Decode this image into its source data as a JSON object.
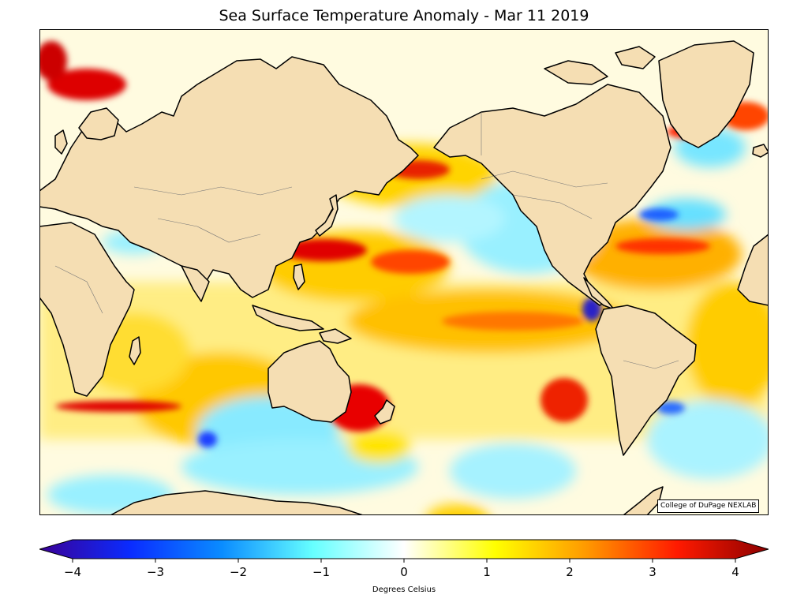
{
  "title": "Sea Surface Temperature Anomaly - Mar 11 2019",
  "credit": "College of DuPage NEXLAB",
  "colorbar": {
    "label": "Degrees Celsius",
    "min": -4,
    "max": 4,
    "ticks": [
      {
        "value": -4,
        "label": "−4"
      },
      {
        "value": -3,
        "label": "−3"
      },
      {
        "value": -2,
        "label": "−2"
      },
      {
        "value": -1,
        "label": "−1"
      },
      {
        "value": 0,
        "label": "0"
      },
      {
        "value": 1,
        "label": "1"
      },
      {
        "value": 2,
        "label": "2"
      },
      {
        "value": 3,
        "label": "3"
      },
      {
        "value": 4,
        "label": "4"
      }
    ],
    "colors": [
      "#3a0096",
      "#0a2cff",
      "#0a8cff",
      "#66ffff",
      "#ffffff",
      "#ffff00",
      "#ff9900",
      "#ff1a00",
      "#8c0000"
    ]
  },
  "colors": {
    "land": "#f5deb3",
    "coastline": "#000000",
    "ocean_neutral": "#ffffff",
    "warm": "#ffd000",
    "hot": "#e00000",
    "cool": "#8ff0ff",
    "cold": "#0030d0"
  }
}
